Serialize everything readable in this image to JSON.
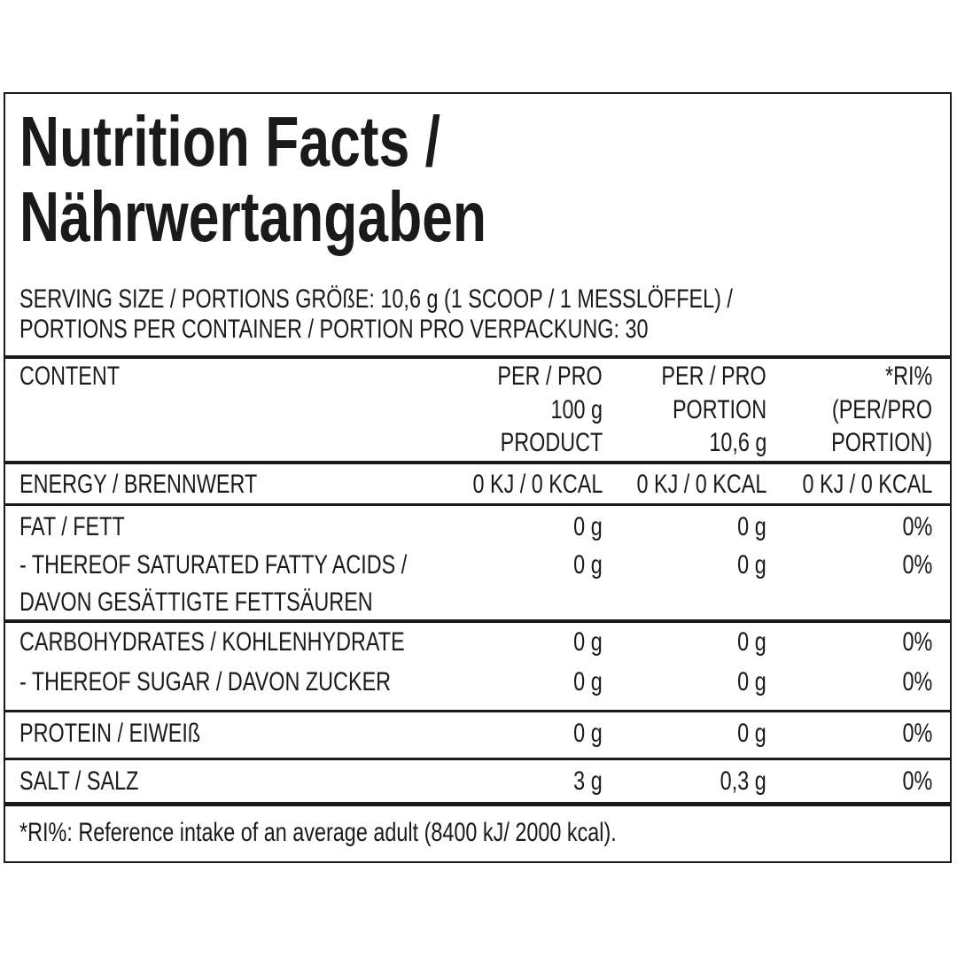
{
  "title": [
    "Nutrition Facts /",
    "Nährwertangaben"
  ],
  "serving": [
    "SERVING SIZE / PORTIONS GRÖßE: 10,6 g (1 SCOOP / 1 MESSLÖFFEL) /",
    "PORTIONS PER CONTAINER / PORTION PRO VERPACKUNG: 30"
  ],
  "table": {
    "header": [
      [
        "CONTENT"
      ],
      [
        "PER / PRO",
        "100 g",
        "PRODUCT"
      ],
      [
        "PER / PRO",
        "PORTION",
        "10,6 g"
      ],
      [
        "*RI%",
        "(PER/PRO",
        "PORTION)"
      ]
    ],
    "rows": [
      {
        "label": [
          "ENERGY / BRENNWERT"
        ],
        "values": [
          "0 KJ / 0 KCAL",
          "0 KJ / 0 KCAL",
          "0 KJ / 0 KCAL"
        ]
      },
      {
        "label": [
          "FAT / FETT"
        ],
        "values": [
          "0 g",
          "0 g",
          "0%"
        ]
      },
      {
        "label": [
          "- THEREOF SATURATED FATTY ACIDS /",
          "DAVON GESÄTTIGTE FETTSÄUREN"
        ],
        "values": [
          "0 g",
          "0 g",
          "0%"
        ]
      },
      {
        "label": [
          "CARBOHYDRATES / KOHLENHYDRATE"
        ],
        "values": [
          "0 g",
          "0 g",
          "0%"
        ]
      },
      {
        "label": [
          "- THEREOF SUGAR / DAVON ZUCKER"
        ],
        "values": [
          "0 g",
          "0 g",
          "0%"
        ]
      },
      {
        "label": [
          "PROTEIN / EIWEIß"
        ],
        "values": [
          "0 g",
          "0 g",
          "0%"
        ]
      },
      {
        "label": [
          "SALT / SALZ"
        ],
        "values": [
          "3 g",
          "0,3 g",
          "0%"
        ]
      }
    ]
  },
  "footnote": "*RI%: Reference intake of an average adult (8400 kJ/ 2000 kcal)."
}
